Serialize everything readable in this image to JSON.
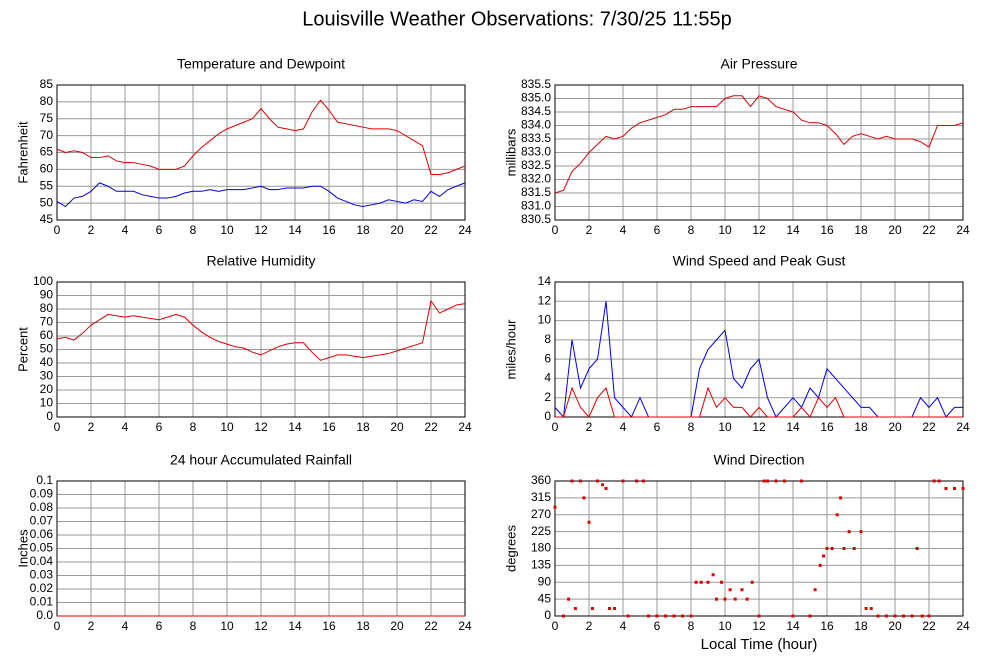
{
  "title": "Louisville Weather Observations: 7/30/25 11:55p",
  "chart_data": [
    {
      "type": "line",
      "title": "Temperature and Dewpoint",
      "y_label": "Fahrenheit",
      "grid": true,
      "x": [
        0,
        0.5,
        1,
        1.5,
        2,
        2.5,
        3,
        3.5,
        4,
        4.5,
        5,
        5.5,
        6,
        6.5,
        7,
        7.5,
        8,
        8.5,
        9,
        9.5,
        10,
        10.5,
        11,
        11.5,
        12,
        12.5,
        13,
        13.5,
        14,
        14.5,
        15,
        15.5,
        16,
        16.5,
        17,
        17.5,
        18,
        18.5,
        19,
        19.5,
        20,
        20.5,
        21,
        21.5,
        22,
        22.5,
        23,
        23.5,
        24
      ],
      "xlim": [
        0,
        24
      ],
      "xticks": [
        0,
        2,
        4,
        6,
        8,
        10,
        12,
        14,
        16,
        18,
        20,
        22,
        24
      ],
      "ylim": [
        45,
        85
      ],
      "yticks": [
        45,
        50,
        55,
        60,
        65,
        70,
        75,
        80,
        85
      ],
      "series": [
        {
          "color": "#e00000",
          "values": [
            66,
            65,
            65.5,
            65,
            63.5,
            63.5,
            64,
            62.5,
            62,
            62,
            61.5,
            61,
            60,
            60,
            60,
            61,
            64,
            66.5,
            68.5,
            70.5,
            72,
            73,
            74,
            75,
            78,
            75,
            72.5,
            72,
            71.5,
            72,
            77,
            80.5,
            77.5,
            74,
            73.5,
            73,
            72.5,
            72,
            72,
            72,
            71.5,
            70,
            68.5,
            67,
            58.5,
            58.5,
            59,
            60,
            61
          ]
        },
        {
          "color": "#0000e0",
          "values": [
            50.5,
            49,
            51.5,
            52,
            53.5,
            56,
            55,
            53.5,
            53.5,
            53.5,
            52.5,
            52,
            51.5,
            51.5,
            52,
            53,
            53.5,
            53.5,
            54,
            53.5,
            54,
            54,
            54,
            54.5,
            55,
            54,
            54,
            54.5,
            54.5,
            54.5,
            55,
            55,
            53.5,
            51.5,
            50.5,
            49.5,
            49,
            49.5,
            50,
            51,
            50.5,
            50,
            51,
            50.5,
            53.5,
            52,
            54,
            55,
            56
          ]
        }
      ]
    },
    {
      "type": "line",
      "title": "Air Pressure",
      "y_label": "millibars",
      "grid": true,
      "x": [
        0,
        0.5,
        1,
        1.5,
        2,
        2.5,
        3,
        3.5,
        4,
        4.5,
        5,
        5.5,
        6,
        6.5,
        7,
        7.5,
        8,
        8.5,
        9,
        9.5,
        10,
        10.5,
        11,
        11.5,
        12,
        12.5,
        13,
        13.5,
        14,
        14.5,
        15,
        15.5,
        16,
        16.5,
        17,
        17.5,
        18,
        18.5,
        19,
        19.5,
        20,
        20.5,
        21,
        21.5,
        22,
        22.5,
        23,
        23.5,
        24
      ],
      "xlim": [
        0,
        24
      ],
      "xticks": [
        0,
        2,
        4,
        6,
        8,
        10,
        12,
        14,
        16,
        18,
        20,
        22,
        24
      ],
      "ylim": [
        830.5,
        835.5
      ],
      "yticks": [
        830.5,
        {
          "value": 831,
          "label": "831.0"
        },
        831.5,
        {
          "value": 832,
          "label": "832.0"
        },
        832.5,
        {
          "value": 833,
          "label": "833.0"
        },
        833.5,
        {
          "value": 834,
          "label": "834.0"
        },
        834.5,
        {
          "value": 835,
          "label": "835.0"
        },
        835.5
      ],
      "series": [
        {
          "color": "#e00000",
          "values": [
            831.5,
            831.6,
            832.3,
            832.6,
            833,
            833.3,
            833.6,
            833.5,
            833.6,
            833.9,
            834.1,
            834.2,
            834.3,
            834.4,
            834.6,
            834.6,
            834.7,
            834.7,
            834.7,
            834.7,
            835,
            835.1,
            835.1,
            834.7,
            835.1,
            835,
            834.7,
            834.6,
            834.5,
            834.2,
            834.1,
            834.1,
            834,
            833.7,
            833.3,
            833.6,
            833.7,
            833.6,
            833.5,
            833.6,
            833.5,
            833.5,
            833.5,
            833.4,
            833.2,
            834,
            834,
            834,
            834.1
          ]
        }
      ]
    },
    {
      "type": "line",
      "title": "Relative Humidity",
      "y_label": "Percent",
      "grid": true,
      "x": [
        0,
        0.5,
        1,
        1.5,
        2,
        2.5,
        3,
        3.5,
        4,
        4.5,
        5,
        5.5,
        6,
        6.5,
        7,
        7.5,
        8,
        8.5,
        9,
        9.5,
        10,
        10.5,
        11,
        11.5,
        12,
        12.5,
        13,
        13.5,
        14,
        14.5,
        15,
        15.5,
        16,
        16.5,
        17,
        17.5,
        18,
        18.5,
        19,
        19.5,
        20,
        20.5,
        21,
        21.5,
        22,
        22.5,
        23,
        23.5,
        24
      ],
      "xlim": [
        0,
        24
      ],
      "xticks": [
        0,
        2,
        4,
        6,
        8,
        10,
        12,
        14,
        16,
        18,
        20,
        22,
        24
      ],
      "ylim": [
        0,
        100
      ],
      "yticks": [
        0,
        10,
        20,
        30,
        40,
        50,
        60,
        70,
        80,
        90,
        100
      ],
      "series": [
        {
          "color": "#e00000",
          "values": [
            58,
            59,
            57,
            62,
            68,
            72,
            76,
            75,
            74,
            75,
            74,
            73,
            72,
            74,
            76,
            74,
            68,
            63,
            59,
            56,
            54,
            52,
            51,
            48,
            46,
            49,
            52,
            54,
            55,
            55,
            48,
            42,
            44,
            46,
            46,
            45,
            44,
            45,
            46,
            47,
            49,
            51,
            53,
            55,
            86,
            77,
            80,
            83,
            84
          ]
        }
      ]
    },
    {
      "type": "line",
      "title": "Wind Speed and Peak Gust",
      "y_label": "miles/hour",
      "grid": true,
      "x": [
        0,
        0.5,
        1,
        1.5,
        2,
        2.5,
        3,
        3.5,
        4,
        4.5,
        5,
        5.5,
        6,
        6.5,
        7,
        7.5,
        8,
        8.5,
        9,
        9.5,
        10,
        10.5,
        11,
        11.5,
        12,
        12.5,
        13,
        13.5,
        14,
        14.5,
        15,
        15.5,
        16,
        16.5,
        17,
        17.5,
        18,
        18.5,
        19,
        19.5,
        20,
        20.5,
        21,
        21.5,
        22,
        22.5,
        23,
        23.5,
        24
      ],
      "xlim": [
        0,
        24
      ],
      "xticks": [
        0,
        2,
        4,
        6,
        8,
        10,
        12,
        14,
        16,
        18,
        20,
        22,
        24
      ],
      "ylim": [
        0,
        14
      ],
      "yticks": [
        0,
        2,
        4,
        6,
        8,
        10,
        12,
        14
      ],
      "series": [
        {
          "color": "#0000e0",
          "values": [
            1,
            0,
            8,
            3,
            5,
            6,
            12,
            2,
            1,
            0,
            2,
            0,
            0,
            0,
            0,
            0,
            0,
            5,
            7,
            8,
            9,
            4,
            3,
            5,
            6,
            2,
            0,
            1,
            2,
            1,
            3,
            2,
            5,
            4,
            3,
            2,
            1,
            1,
            0,
            0,
            0,
            0,
            0,
            2,
            1,
            2,
            0,
            1,
            1
          ]
        },
        {
          "color": "#e00000",
          "values": [
            0,
            0,
            3,
            1,
            0,
            2,
            3,
            0,
            0,
            0,
            0,
            0,
            0,
            0,
            0,
            0,
            0,
            0,
            3,
            1,
            2,
            1,
            1,
            0,
            1,
            0,
            0,
            0,
            0,
            1,
            0,
            2,
            1,
            2,
            0,
            0,
            0,
            0,
            0,
            0,
            0,
            0,
            0,
            0,
            0,
            0,
            0,
            0,
            0
          ]
        }
      ]
    },
    {
      "type": "line",
      "title": "24 hour Accumulated Rainfall",
      "y_label": "Inches",
      "grid": true,
      "x": [
        0,
        0.5,
        1,
        1.5,
        2,
        2.5,
        3,
        3.5,
        4,
        4.5,
        5,
        5.5,
        6,
        6.5,
        7,
        7.5,
        8,
        8.5,
        9,
        9.5,
        10,
        10.5,
        11,
        11.5,
        12,
        12.5,
        13,
        13.5,
        14,
        14.5,
        15,
        15.5,
        16,
        16.5,
        17,
        17.5,
        18,
        18.5,
        19,
        19.5,
        20,
        20.5,
        21,
        21.5,
        22,
        22.5,
        23,
        23.5,
        24
      ],
      "xlim": [
        0,
        24
      ],
      "xticks": [
        0,
        2,
        4,
        6,
        8,
        10,
        12,
        14,
        16,
        18,
        20,
        22,
        24
      ],
      "ylim": [
        0,
        0.1
      ],
      "yticks": [
        {
          "value": 0,
          "label": "0.0"
        },
        0.01,
        0.02,
        0.03,
        0.04,
        0.05,
        0.06,
        0.07,
        0.08,
        0.09,
        0.1
      ],
      "series": [
        {
          "color": "#e00000",
          "values": [
            0,
            0,
            0,
            0,
            0,
            0,
            0,
            0,
            0,
            0,
            0,
            0,
            0,
            0,
            0,
            0,
            0,
            0,
            0,
            0,
            0,
            0,
            0,
            0,
            0,
            0,
            0,
            0,
            0,
            0,
            0,
            0,
            0,
            0,
            0,
            0,
            0,
            0,
            0,
            0,
            0,
            0,
            0,
            0,
            0,
            0,
            0,
            0,
            0
          ]
        }
      ]
    },
    {
      "type": "scatter",
      "title": "Wind Direction",
      "y_label": "degrees",
      "x_label": "Local Time (hour)",
      "grid": true,
      "x": [
        0,
        0.5,
        0.8,
        1,
        1.2,
        1.5,
        1.7,
        2,
        2.2,
        2.5,
        2.8,
        3,
        3.2,
        3.5,
        4,
        4.3,
        4.8,
        5.2,
        5.5,
        6,
        6.5,
        7,
        7.5,
        8,
        8.3,
        8.6,
        9,
        9.3,
        9.5,
        9.8,
        10,
        10.3,
        10.6,
        11,
        11.3,
        11.6,
        12,
        12.3,
        12.5,
        13,
        13.5,
        14,
        14.5,
        15,
        15.3,
        15.6,
        15.8,
        16,
        16.3,
        16.6,
        16.8,
        17,
        17.3,
        17.6,
        18,
        18.3,
        18.6,
        19,
        19.5,
        20,
        20.5,
        21,
        21.3,
        21.6,
        22,
        22.3,
        22.6,
        23,
        23.5,
        24
      ],
      "xlim": [
        0,
        24
      ],
      "xticks": [
        0,
        2,
        4,
        6,
        8,
        10,
        12,
        14,
        16,
        18,
        20,
        22,
        24
      ],
      "ylim": [
        0,
        360
      ],
      "yticks": [
        0,
        45,
        90,
        135,
        180,
        225,
        270,
        315,
        360
      ],
      "series": [
        {
          "color": "#e00000",
          "values": [
            290,
            0,
            45,
            360,
            20,
            360,
            315,
            250,
            20,
            360,
            350,
            340,
            20,
            20,
            360,
            0,
            360,
            360,
            0,
            0,
            0,
            0,
            0,
            0,
            90,
            90,
            90,
            110,
            45,
            90,
            45,
            70,
            45,
            70,
            45,
            90,
            0,
            360,
            360,
            360,
            360,
            0,
            360,
            0,
            70,
            135,
            160,
            180,
            180,
            270,
            315,
            180,
            225,
            180,
            225,
            20,
            20,
            0,
            0,
            0,
            0,
            0,
            180,
            0,
            0,
            360,
            360,
            340,
            340,
            340
          ]
        }
      ]
    }
  ]
}
